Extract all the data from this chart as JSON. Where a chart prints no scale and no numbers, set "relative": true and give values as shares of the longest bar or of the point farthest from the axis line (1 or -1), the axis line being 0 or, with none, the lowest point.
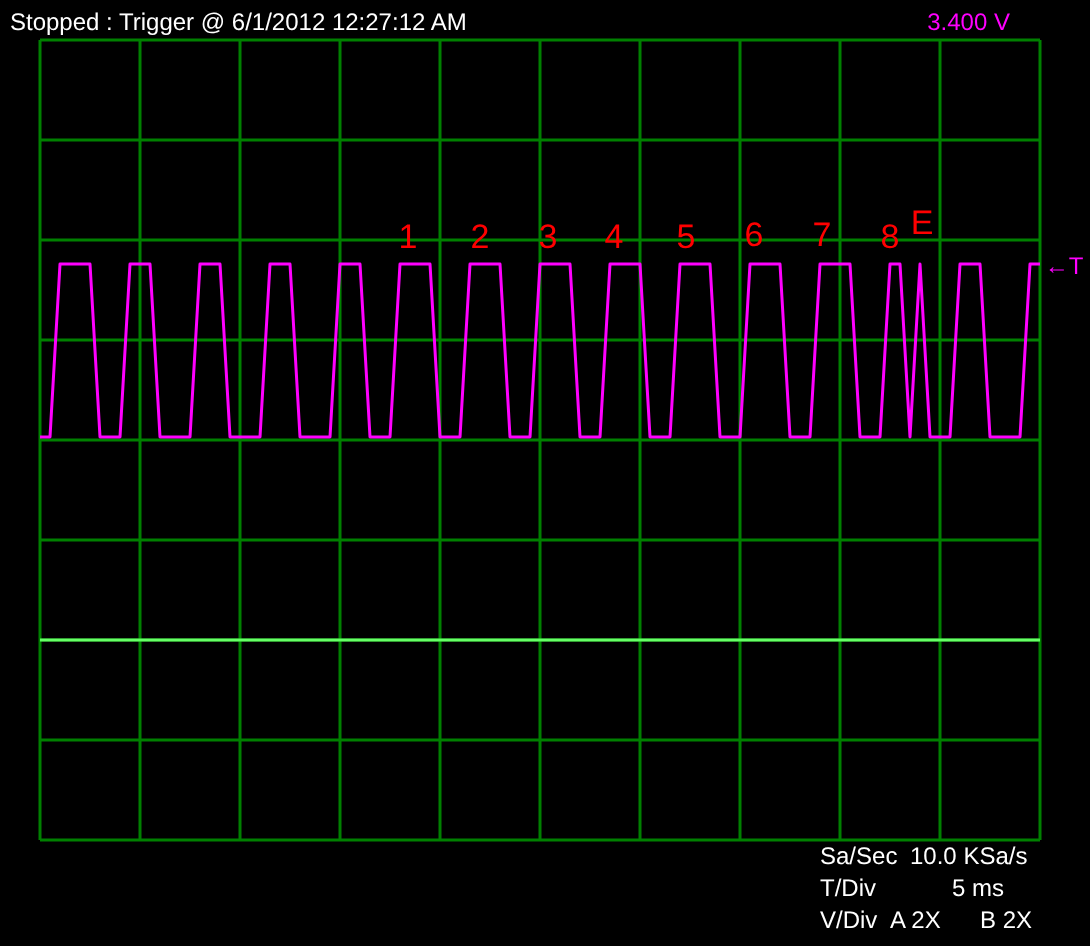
{
  "chart_data": {
    "type": "line",
    "relative": true,
    "title": "Stopped : Trigger @ 6/1/2012 12:27:12 AM",
    "categories": [
      null,
      null,
      null,
      null,
      null,
      null,
      null,
      null,
      null,
      null,
      null,
      null,
      null,
      null,
      null,
      null,
      null,
      null,
      null,
      null,
      null,
      null,
      null,
      null,
      null,
      null,
      null,
      null,
      null,
      null,
      null,
      null,
      null,
      null,
      null,
      null,
      null,
      null,
      null,
      null,
      null,
      null,
      null,
      null,
      null,
      null,
      null,
      null,
      null,
      null,
      null,
      null,
      null,
      null,
      null,
      null,
      null,
      null,
      null,
      null,
      null,
      null,
      null,
      null,
      null,
      null,
      null,
      null,
      null,
      null,
      null,
      null,
      null,
      null,
      null,
      null,
      null,
      null,
      null,
      null,
      null,
      null,
      null,
      null,
      null,
      null,
      null,
      null,
      null,
      null,
      null,
      null,
      null,
      null,
      null,
      null,
      null,
      null,
      null,
      null,
      null
    ],
    "series": [
      {
        "color": "#ff00ff",
        "values": [
          0.54,
          0.54,
          1,
          1,
          1,
          1,
          0.54,
          0.54,
          0.54,
          1,
          1,
          1,
          0.54,
          0.54,
          0.54,
          0.54,
          1,
          1,
          1,
          0.54,
          0.54,
          0.54,
          0.54,
          1,
          1,
          1,
          0.54,
          0.54,
          0.54,
          0.54,
          1,
          1,
          1,
          0.54,
          0.54,
          0.54,
          1,
          1,
          1,
          1,
          0.54,
          0.54,
          0.54,
          1,
          1,
          1,
          1,
          0.54,
          0.54,
          0.54,
          1,
          1,
          1,
          1,
          0.54,
          0.54,
          0.54,
          1,
          1,
          1,
          1,
          0.54,
          0.54,
          0.54,
          1,
          1,
          1,
          1,
          0.54,
          0.54,
          0.54,
          1,
          1,
          1,
          1,
          0.54,
          0.54,
          0.54,
          1,
          1,
          1,
          1,
          0.54,
          0.54,
          0.54,
          1,
          1,
          0.54,
          1,
          0.54,
          0.54,
          0.54,
          1,
          1,
          1,
          0.54,
          0.54,
          0.54,
          0.54,
          1,
          1
        ]
      },
      {
        "color": "#66ff66",
        "values": [
          0,
          0,
          0,
          0,
          0,
          0,
          0,
          0,
          0,
          0,
          0,
          0,
          0,
          0,
          0,
          0,
          0,
          0,
          0,
          0,
          0,
          0,
          0,
          0,
          0,
          0,
          0,
          0,
          0,
          0,
          0,
          0,
          0,
          0,
          0,
          0,
          0,
          0,
          0,
          0,
          0,
          0,
          0,
          0,
          0,
          0,
          0,
          0,
          0,
          0,
          0,
          0,
          0,
          0,
          0,
          0,
          0,
          0,
          0,
          0,
          0,
          0,
          0,
          0,
          0,
          0,
          0,
          0,
          0,
          0,
          0,
          0,
          0,
          0,
          0,
          0,
          0,
          0,
          0,
          0,
          0,
          0,
          0,
          0,
          0,
          0,
          0,
          0,
          0,
          0,
          0,
          0,
          0,
          0,
          0,
          0,
          0,
          0,
          0,
          0,
          0
        ]
      }
    ],
    "annotations": [
      "3.400 V",
      "1",
      "2",
      "3",
      "4",
      "5",
      "6",
      "7",
      "8",
      "E",
      "←T",
      "Sa/Sec",
      "10.0 KSa/s",
      "T/Div",
      "5 ms",
      "V/Div",
      "A 2X",
      "B 2X"
    ],
    "grid": true
  }
}
